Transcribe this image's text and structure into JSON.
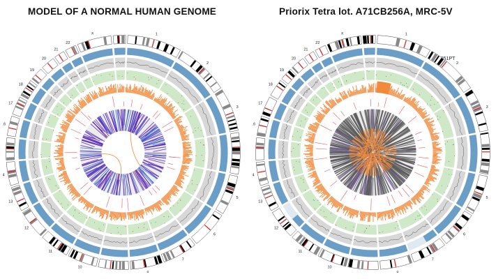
{
  "panels": [
    {
      "title": "MODEL OF A NORMAL HUMAN GENOME",
      "sample_id": "",
      "variant": "normal"
    },
    {
      "title": "Priorix Tetra lot. A71CB256A, MRC-5V",
      "sample_id": "ID12051PT",
      "variant": "priorix"
    }
  ],
  "chromosomes": [
    "1",
    "2",
    "3",
    "4",
    "5",
    "6",
    "7",
    "8",
    "9",
    "10",
    "11",
    "12",
    "13",
    "14",
    "15",
    "16",
    "17",
    "18",
    "19",
    "20",
    "21",
    "22",
    "X",
    "Y"
  ],
  "colors": {
    "ideogram_band": "#000000",
    "ideogram_centromere": "#d62728",
    "copy_number_track": "#6a9ec7",
    "gray_track": "#d7d7d7",
    "green_track": "#cfe9c8",
    "orange_track": "#f08a3c",
    "inner_disc": "#ececec",
    "link_normal": "#5b2bb8",
    "link_dense": "#5a5a5a",
    "translocation": "#f08a3c"
  }
}
